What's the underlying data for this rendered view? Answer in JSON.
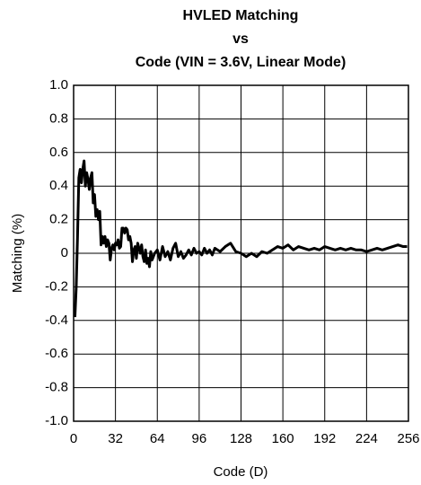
{
  "chart_data": {
    "type": "line",
    "title": [
      "HVLED Matching",
      "vs",
      "Code (VIN = 3.6V, Linear Mode)"
    ],
    "xlabel": "Code (D)",
    "ylabel": "Matching (%)",
    "xlim": [
      0,
      256
    ],
    "ylim": [
      -1,
      1
    ],
    "xticks": [
      0,
      32,
      64,
      96,
      128,
      160,
      192,
      224,
      256
    ],
    "yticks": [
      {
        "value": 1,
        "label": "1.0"
      },
      0.8,
      0.6,
      0.4,
      0.2,
      0,
      -0.2,
      -0.4,
      -0.6,
      -0.8,
      {
        "value": -1,
        "label": "-1.0"
      }
    ],
    "grid": true,
    "series": [
      {
        "color": "#000000",
        "x": [
          1,
          2,
          3,
          4,
          5,
          6,
          7,
          8,
          9,
          10,
          11,
          12,
          13,
          14,
          15,
          16,
          17,
          18,
          19,
          20,
          21,
          22,
          23,
          24,
          25,
          26,
          27,
          28,
          29,
          30,
          31,
          32,
          33,
          34,
          35,
          36,
          37,
          38,
          39,
          40,
          41,
          42,
          43,
          44,
          45,
          46,
          47,
          48,
          49,
          50,
          51,
          52,
          53,
          54,
          55,
          56,
          57,
          58,
          59,
          60,
          62,
          64,
          66,
          68,
          70,
          72,
          74,
          76,
          78,
          80,
          82,
          84,
          86,
          88,
          90,
          92,
          94,
          96,
          98,
          100,
          102,
          104,
          106,
          108,
          112,
          116,
          120,
          124,
          128,
          132,
          136,
          140,
          144,
          148,
          152,
          156,
          160,
          164,
          168,
          172,
          176,
          180,
          184,
          188,
          192,
          196,
          200,
          204,
          208,
          212,
          216,
          220,
          224,
          228,
          232,
          236,
          240,
          244,
          248,
          252,
          255
        ],
        "values": [
          -0.38,
          -0.2,
          0.1,
          0.45,
          0.5,
          0.42,
          0.5,
          0.55,
          0.4,
          0.48,
          0.44,
          0.38,
          0.45,
          0.48,
          0.3,
          0.35,
          0.22,
          0.26,
          0.2,
          0.25,
          0.05,
          0.1,
          0.06,
          0.1,
          0.04,
          0.08,
          0.06,
          -0.04,
          0.03,
          0.05,
          0.02,
          0.06,
          0.05,
          0.08,
          0.03,
          0.04,
          0.15,
          0.15,
          0.12,
          0.15,
          0.14,
          0.08,
          0.1,
          0.06,
          -0.05,
          0.02,
          0.04,
          -0.03,
          0.06,
          0.03,
          0.0,
          0.05,
          -0.02,
          -0.05,
          0.02,
          -0.06,
          -0.03,
          -0.08,
          0.01,
          -0.04,
          0.0,
          0.02,
          -0.04,
          0.04,
          -0.02,
          0.01,
          -0.04,
          0.03,
          0.06,
          -0.02,
          0.01,
          -0.03,
          -0.01,
          0.02,
          -0.01,
          0.03,
          0.0,
          0.01,
          -0.01,
          0.03,
          0.0,
          0.02,
          -0.01,
          0.03,
          0.01,
          0.04,
          0.06,
          0.01,
          0.0,
          -0.02,
          0.0,
          -0.02,
          0.01,
          0.0,
          0.02,
          0.04,
          0.03,
          0.05,
          0.02,
          0.04,
          0.03,
          0.02,
          0.03,
          0.02,
          0.04,
          0.03,
          0.02,
          0.03,
          0.02,
          0.03,
          0.02,
          0.02,
          0.01,
          0.02,
          0.03,
          0.02,
          0.03,
          0.04,
          0.05,
          0.04,
          0.04
        ]
      }
    ]
  }
}
